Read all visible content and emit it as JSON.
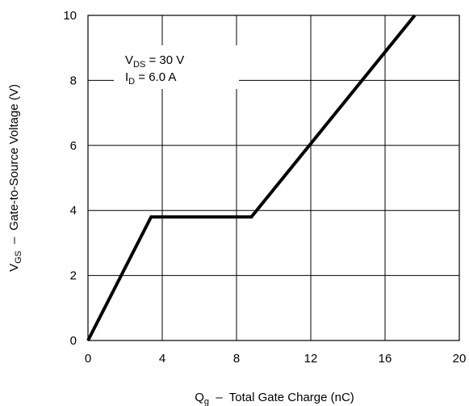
{
  "chart_data": {
    "type": "line",
    "xlabel": {
      "main": "Q",
      "sub": "g",
      "rest": "  –  Total Gate Charge (nC)"
    },
    "ylabel": {
      "main": "V",
      "sub": "GS",
      "rest": "  –  Gate-to-Source Voltage (V)"
    },
    "xlim": [
      0,
      20
    ],
    "ylim": [
      0,
      10
    ],
    "x_ticks": [
      "0",
      "4",
      "8",
      "12",
      "16",
      "20"
    ],
    "y_ticks": [
      "0",
      "2",
      "4",
      "6",
      "8",
      "10"
    ],
    "grid": true,
    "series": [
      {
        "x": [
          0,
          3.4,
          8.8,
          17.6
        ],
        "y": [
          0,
          3.8,
          3.8,
          10
        ]
      }
    ],
    "annotations": [
      {
        "main": "V",
        "sub": "DS",
        "rest": " = 30 V"
      },
      {
        "main": "I",
        "sub": "D",
        "rest": " = 6.0 A"
      }
    ],
    "colors": {
      "line": "#000000",
      "grid": "#000000",
      "background": "#ffffff"
    }
  }
}
